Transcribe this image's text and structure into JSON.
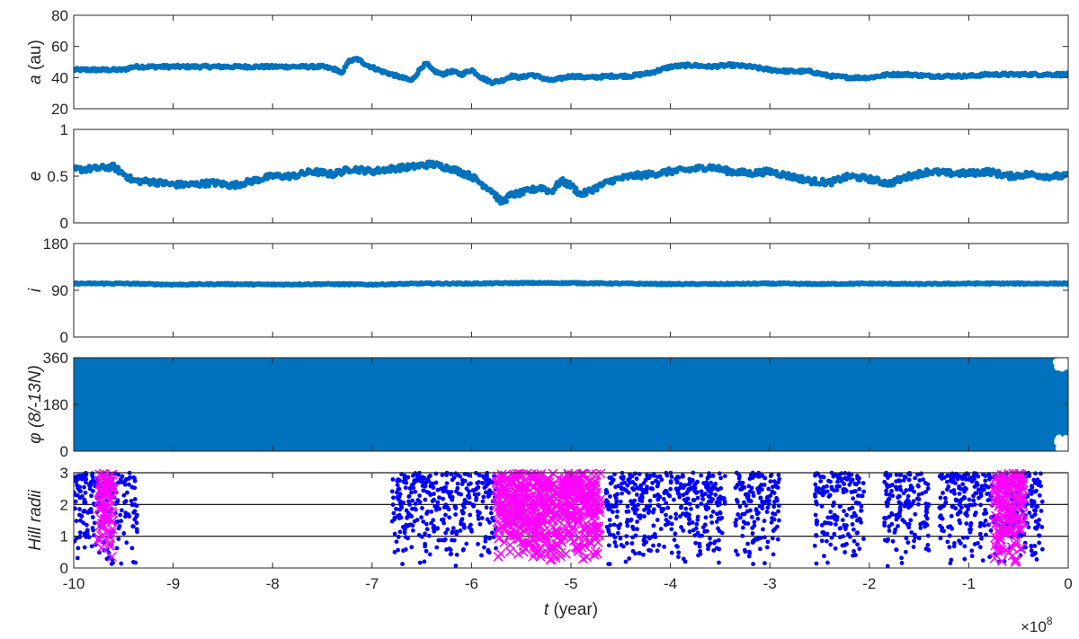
{
  "chart_data": [
    {
      "type": "scatter",
      "ylabel_var": "a",
      "ylabel_unit": " (au)",
      "ylim": [
        20,
        80
      ],
      "yticks": [
        "20",
        "40",
        "60",
        "80"
      ],
      "color": "#0072BD",
      "series": [
        {
          "x": [
            -10,
            -9.5,
            -9.4,
            -9,
            -8.5,
            -8,
            -7.5,
            -7.35,
            -7.3,
            -7.25,
            -7.15,
            -7.05,
            -6.9,
            -6.8,
            -6.7,
            -6.6,
            -6.5,
            -6.45,
            -6.4,
            -6.3,
            -6.2,
            -6.1,
            -6,
            -5.9,
            -5.8,
            -5.7,
            -5.6,
            -5.5,
            -5.4,
            -5.2,
            -5.0,
            -4.8,
            -4.6,
            -4.4,
            -4.2,
            -4.0,
            -3.8,
            -3.6,
            -3.4,
            -3.2,
            -3.0,
            -2.8,
            -2.6,
            -2.4,
            -2.2,
            -2.0,
            -1.8,
            -1.6,
            -1.4,
            -1.2,
            -1.0,
            -0.8,
            -0.6,
            -0.4,
            -0.2,
            0
          ],
          "y": [
            45,
            45,
            47,
            47,
            47,
            47,
            47,
            45,
            42,
            50,
            52,
            48,
            44,
            42,
            40,
            38,
            47,
            49,
            45,
            42,
            44,
            42,
            45,
            40,
            37,
            38,
            41,
            40,
            42,
            38,
            41,
            40,
            41,
            41,
            43,
            47,
            48,
            47,
            48,
            47,
            45,
            44,
            44,
            41,
            40,
            40,
            42,
            42,
            41,
            41,
            41,
            42,
            42,
            42,
            42,
            42
          ]
        }
      ]
    },
    {
      "type": "scatter",
      "ylabel_var": "e",
      "ylabel_unit": "",
      "ylim": [
        0,
        1
      ],
      "yticks": [
        "0",
        "0.5",
        "1"
      ],
      "color": "#0072BD",
      "series": [
        {
          "x": [
            -10,
            -9.8,
            -9.6,
            -9.4,
            -9.2,
            -9,
            -8.8,
            -8.6,
            -8.4,
            -8.2,
            -8,
            -7.8,
            -7.6,
            -7.4,
            -7.2,
            -7,
            -6.8,
            -6.6,
            -6.4,
            -6.2,
            -6.0,
            -5.9,
            -5.8,
            -5.7,
            -5.6,
            -5.5,
            -5.4,
            -5.3,
            -5.2,
            -5.1,
            -5.0,
            -4.9,
            -4.8,
            -4.6,
            -4.4,
            -4.2,
            -4.0,
            -3.8,
            -3.6,
            -3.4,
            -3.2,
            -3.0,
            -2.8,
            -2.6,
            -2.4,
            -2.2,
            -2.0,
            -1.8,
            -1.6,
            -1.4,
            -1.2,
            -1.0,
            -0.8,
            -0.6,
            -0.4,
            -0.2,
            0
          ],
          "y": [
            0.57,
            0.58,
            0.6,
            0.45,
            0.44,
            0.41,
            0.41,
            0.43,
            0.4,
            0.45,
            0.5,
            0.5,
            0.55,
            0.52,
            0.58,
            0.55,
            0.58,
            0.6,
            0.63,
            0.58,
            0.5,
            0.42,
            0.35,
            0.22,
            0.3,
            0.32,
            0.35,
            0.38,
            0.33,
            0.45,
            0.4,
            0.3,
            0.35,
            0.45,
            0.5,
            0.52,
            0.55,
            0.57,
            0.6,
            0.55,
            0.53,
            0.55,
            0.5,
            0.45,
            0.43,
            0.5,
            0.47,
            0.42,
            0.5,
            0.55,
            0.53,
            0.53,
            0.55,
            0.5,
            0.52,
            0.5,
            0.5
          ]
        }
      ]
    },
    {
      "type": "scatter",
      "ylabel_var": "i",
      "ylabel_unit": "",
      "ylim": [
        0,
        180
      ],
      "yticks": [
        "0",
        "90",
        "180"
      ],
      "color": "#0072BD",
      "series": [
        {
          "x": [
            -10,
            -9.5,
            -9,
            -8.5,
            -8,
            -7.5,
            -7,
            -6.5,
            -6,
            -5.5,
            -5,
            -4.5,
            -4,
            -3.5,
            -3,
            -2.5,
            -2,
            -1.5,
            -1,
            -0.5,
            0
          ],
          "y": [
            103,
            103,
            101,
            102,
            101,
            102,
            101,
            103,
            103,
            104,
            104,
            103,
            102,
            102,
            103,
            102,
            103,
            102,
            103,
            103,
            103
          ]
        }
      ]
    },
    {
      "type": "scatter",
      "ylabel_var": "φ",
      "ylabel_unit": " (8/-13N)",
      "ylim": [
        0,
        360
      ],
      "yticks": [
        "0",
        "180",
        "360"
      ],
      "color": "#0072BD",
      "fill_band": [
        0,
        360
      ],
      "series": [
        {
          "x": [
            -10,
            0
          ],
          "y": [
            0,
            360
          ]
        }
      ]
    },
    {
      "type": "scatter",
      "ylabel_var": "Hill radii",
      "ylabel_unit": "",
      "ylim": [
        0,
        3
      ],
      "yticks": [
        "0",
        "1",
        "2",
        "3"
      ],
      "hlines": [
        1,
        2,
        3
      ],
      "xlim": [
        -10,
        0
      ],
      "xticks": [
        "-10",
        "-9",
        "-8",
        "-7",
        "-6",
        "-5",
        "-4",
        "-3",
        "-2",
        "-1",
        "0"
      ],
      "xlabel_var": "t",
      "xlabel_unit": " (year)",
      "x_multiplier_base": "×10",
      "x_multiplier_exp": "8",
      "series": [
        {
          "marker": "dot",
          "color": "#0000FF",
          "x_ranges": [
            [
              -10,
              -9.35
            ],
            [
              -6.8,
              -5.75
            ],
            [
              -4.65,
              -3.45
            ],
            [
              -3.35,
              -2.9
            ],
            [
              -2.55,
              -2.05
            ],
            [
              -1.85,
              -1.4
            ],
            [
              -1.3,
              -0.25
            ]
          ]
        },
        {
          "marker": "x",
          "color": "#FF00FF",
          "x_ranges": [
            [
              -9.75,
              -9.6
            ],
            [
              -5.75,
              -4.7
            ],
            [
              -0.75,
              -0.45
            ]
          ]
        }
      ]
    }
  ]
}
